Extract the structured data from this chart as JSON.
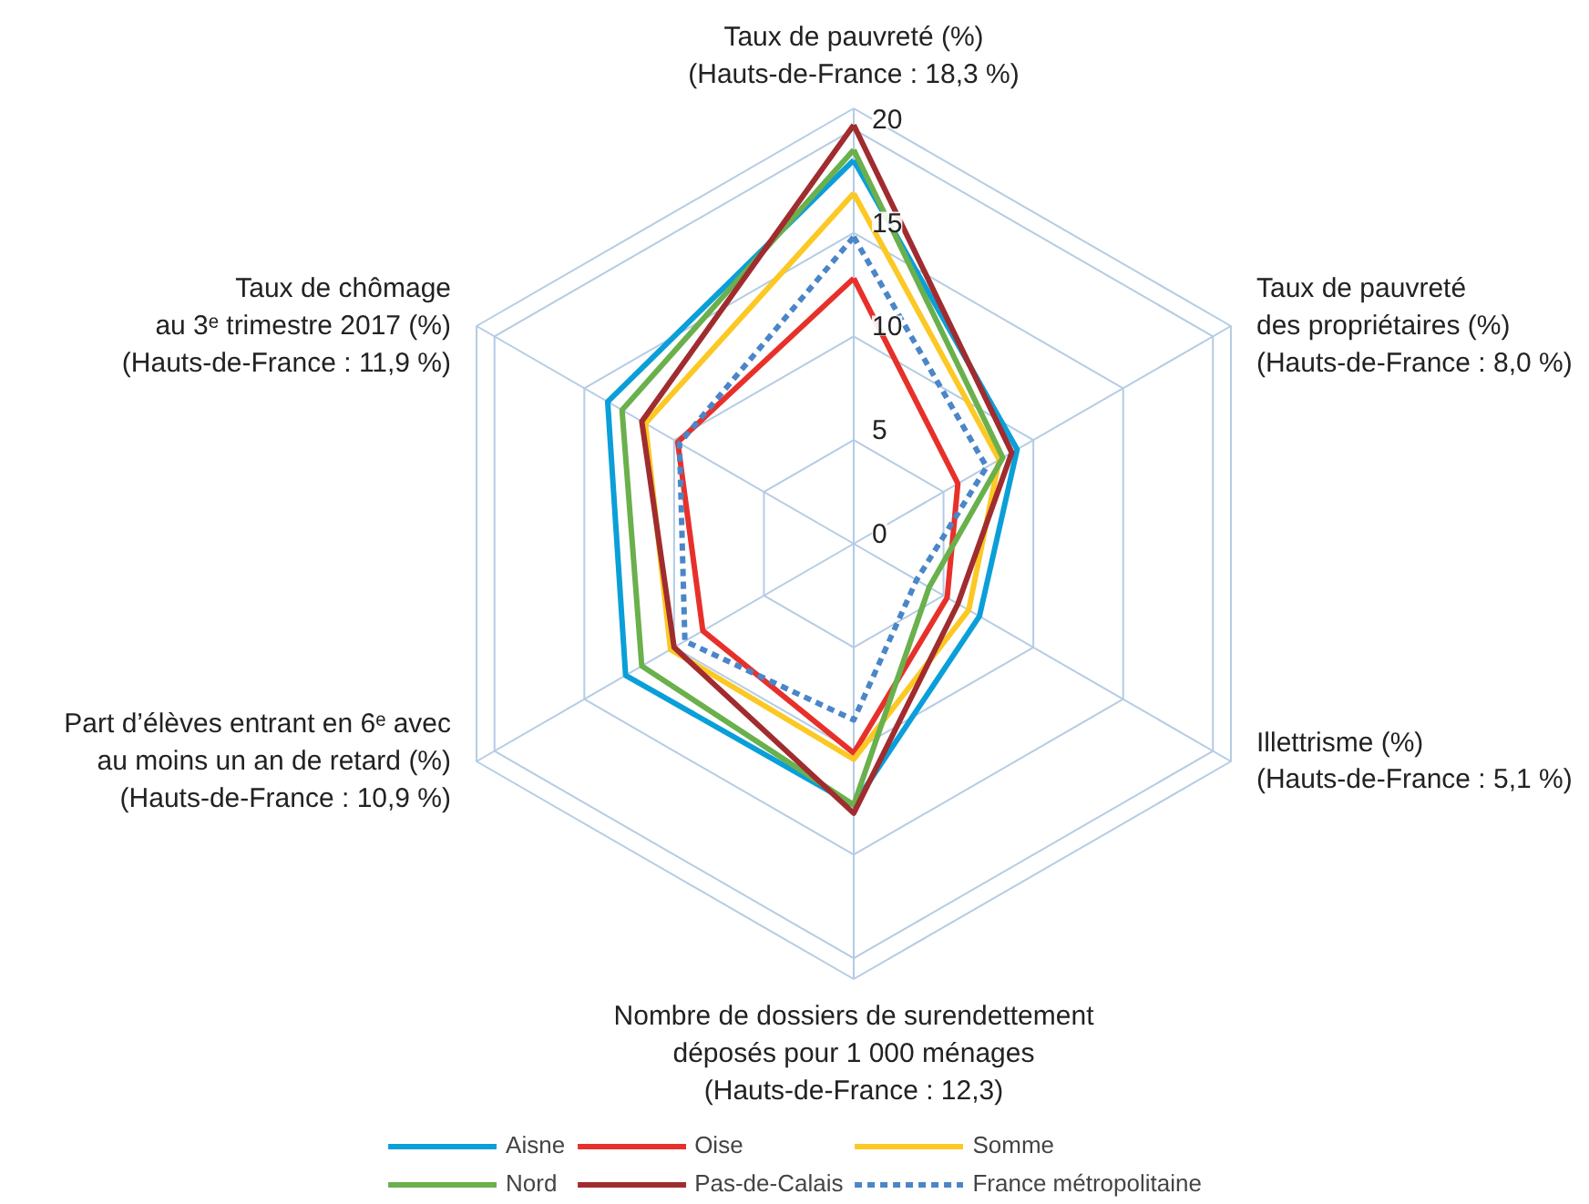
{
  "chart_data": {
    "type": "radar",
    "categories": [
      "Taux de pauvreté (%)\n(Hauts-de-France : 18,3 %)",
      "Taux de pauvreté\ndes propriétaires (%)\n(Hauts-de-France : 8,0 %)",
      "Illettrisme (%)\n(Hauts-de-France : 5,1 %)",
      "Nombre de dossiers de surendettement\ndéposés pour 1 000 ménages\n(Hauts-de-France : 12,3)",
      "Part d’élèves entrant en 6ᵉ avec\nau moins un an de retard (%)\n(Hauts-de-France : 10,9 %)",
      "Taux de chômage\nau 3ᵉ trimestre 2017 (%)\n(Hauts-de-France : 11,9 %)"
    ],
    "series": [
      {
        "name": "Aisne",
        "color": "#0a9fd8",
        "values": [
          18.5,
          9.1,
          7.0,
          12.6,
          12.7,
          13.7
        ]
      },
      {
        "name": "Oise",
        "color": "#e8302a",
        "values": [
          12.8,
          5.8,
          5.2,
          10.1,
          8.4,
          9.8
        ]
      },
      {
        "name": "Somme",
        "color": "#fcc824",
        "values": [
          16.9,
          8.1,
          6.4,
          10.4,
          10.2,
          11.6
        ]
      },
      {
        "name": "Nord",
        "color": "#6ab04c",
        "values": [
          19.0,
          8.3,
          4.2,
          12.6,
          11.8,
          12.9
        ]
      },
      {
        "name": "Pas-de-Calais",
        "color": "#a02c2f",
        "values": [
          20.2,
          8.8,
          5.8,
          13.0,
          10.0,
          11.8
        ]
      },
      {
        "name": "France métropolitaine",
        "color": "#4a86c8",
        "line_style": "dashed",
        "values": [
          14.8,
          7.4,
          3.5,
          8.5,
          9.4,
          9.7
        ]
      }
    ],
    "ylim": [
      0,
      21
    ],
    "yticks": [
      0,
      5,
      10,
      15,
      20
    ],
    "grid": true,
    "legend": "bottom",
    "line_style": "solid"
  }
}
